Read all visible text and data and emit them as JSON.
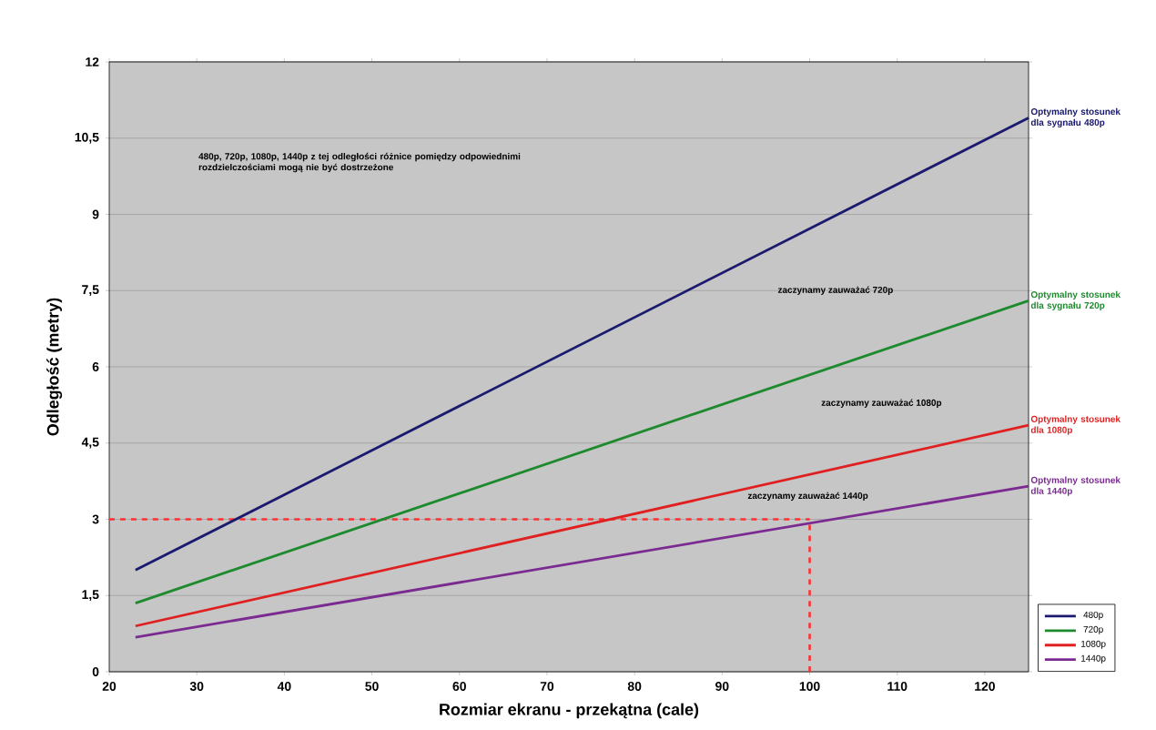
{
  "chart_data": {
    "type": "line",
    "xlabel": "Rozmiar ekranu - przekątna (cale)",
    "ylabel": "Odległość (metry)",
    "xlim": [
      20,
      125
    ],
    "xticks": [
      20,
      30,
      40,
      50,
      60,
      70,
      80,
      90,
      100,
      110,
      120
    ],
    "ylim": [
      0,
      12
    ],
    "yticks": [
      0,
      {
        "value": 1.5,
        "label": "1,5"
      },
      3,
      {
        "value": 4.5,
        "label": "4,5"
      },
      6,
      {
        "value": 7.5,
        "label": "7,5"
      },
      9,
      {
        "value": 10.5,
        "label": "10,5"
      },
      12
    ],
    "grid": "y",
    "legend": "bottom right",
    "marker": "none",
    "line_style": "solid",
    "x": [
      23,
      125
    ],
    "series": [
      {
        "name": "480p",
        "color": "#1a1a6e",
        "values": [
          2.0,
          10.9
        ]
      },
      {
        "name": "720p",
        "color": "#1e8a2e",
        "values": [
          1.35,
          7.3
        ]
      },
      {
        "name": "1080p",
        "color": "#e02020",
        "values": [
          0.9,
          4.85
        ]
      },
      {
        "name": "1440p",
        "color": "#7a2a90",
        "values": [
          0.68,
          3.65
        ]
      }
    ],
    "ref_lines": [
      {
        "axis": "y",
        "value": 3,
        "color": "#ff3030",
        "line_style": "dashed"
      },
      {
        "axis": "x",
        "value": 100,
        "color": "#ff3030",
        "line_style": "dashed"
      }
    ],
    "annotations": [
      "Optymalny stosunek dla sygnału 480p",
      "Optymalny stosunek dla sygnału 720p",
      "Optymalny stosunek dla 1080p",
      "Optymalny stosunek dla 1440p",
      "480p, 720p, 1080p, 1440p  z tej odległości różnice pomiędzy odpowiednimi rozdzielczościami mogą nie być dostrzeżone",
      "zaczynamy zauważać 720p",
      "zaczynamy zauważać 1080p",
      "zaczynamy zauważać 1440p"
    ]
  }
}
